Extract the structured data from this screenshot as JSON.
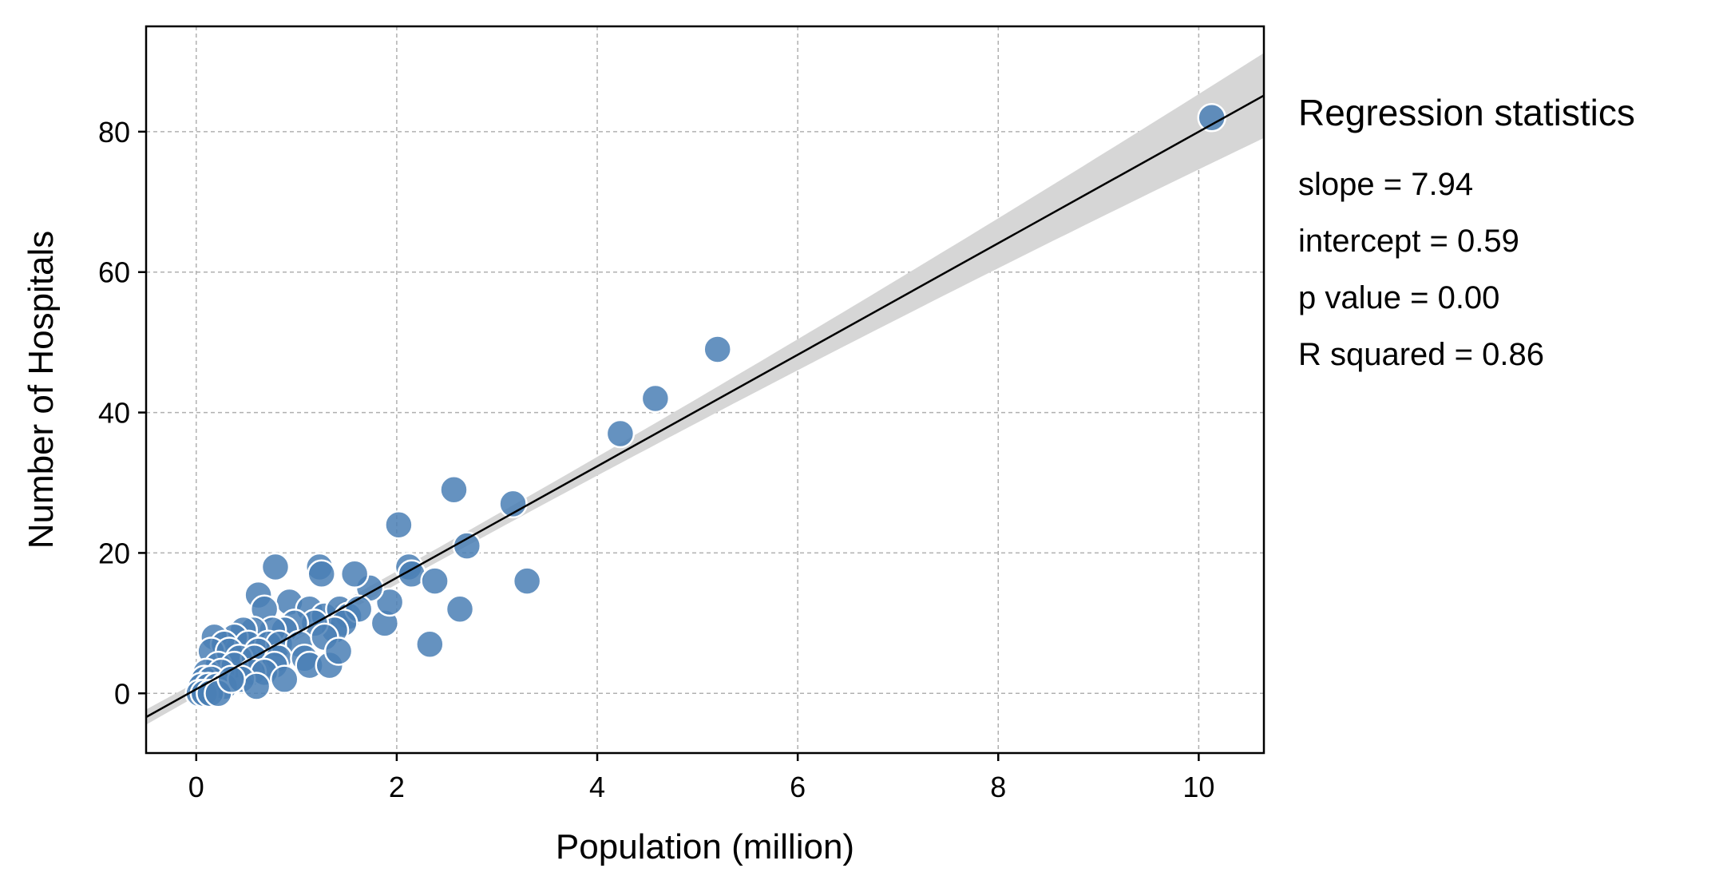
{
  "chart_data": {
    "type": "scatter",
    "title": "",
    "xlabel": "Population (million)",
    "ylabel": "Number of Hospitals",
    "xlim": [
      -0.5,
      10.65
    ],
    "ylim": [
      -8.5,
      95
    ],
    "xticks": [
      0,
      2,
      4,
      6,
      8,
      10
    ],
    "yticks": [
      0,
      20,
      40,
      60,
      80
    ],
    "grid": true,
    "colors": {
      "points": "#4a7fb5",
      "point_edge": "#ffffff",
      "line": "#000000",
      "band": "#d6d6d6",
      "grid": "#b0b0b0"
    },
    "series": [
      {
        "type": "scatter",
        "points": [
          [
            10.13,
            82
          ],
          [
            5.2,
            49
          ],
          [
            4.58,
            42
          ],
          [
            4.23,
            37
          ],
          [
            3.16,
            27
          ],
          [
            2.57,
            29
          ],
          [
            2.02,
            24
          ],
          [
            2.7,
            21
          ],
          [
            3.3,
            16
          ],
          [
            2.12,
            18
          ],
          [
            2.15,
            17
          ],
          [
            2.38,
            16
          ],
          [
            2.63,
            12
          ],
          [
            2.33,
            7
          ],
          [
            1.88,
            10
          ],
          [
            1.93,
            13
          ],
          [
            1.73,
            15
          ],
          [
            1.58,
            17
          ],
          [
            1.23,
            18
          ],
          [
            1.25,
            17
          ],
          [
            0.79,
            18
          ],
          [
            0.62,
            14
          ],
          [
            0.93,
            13
          ],
          [
            0.68,
            12
          ],
          [
            1.13,
            12
          ],
          [
            1.28,
            11
          ],
          [
            1.43,
            12
          ],
          [
            1.52,
            11
          ],
          [
            1.62,
            12
          ],
          [
            1.47,
            10
          ],
          [
            1.38,
            9
          ],
          [
            1.18,
            10
          ],
          [
            0.98,
            10
          ],
          [
            0.88,
            9
          ],
          [
            0.76,
            9
          ],
          [
            0.57,
            9
          ],
          [
            0.47,
            9
          ],
          [
            0.38,
            8
          ],
          [
            0.18,
            8
          ],
          [
            0.28,
            7
          ],
          [
            0.52,
            7
          ],
          [
            0.72,
            7
          ],
          [
            0.83,
            7
          ],
          [
            1.03,
            7
          ],
          [
            1.28,
            8
          ],
          [
            0.15,
            6
          ],
          [
            0.33,
            6
          ],
          [
            0.62,
            6
          ],
          [
            0.43,
            5
          ],
          [
            0.58,
            5
          ],
          [
            0.82,
            5
          ],
          [
            1.08,
            5
          ],
          [
            0.22,
            4
          ],
          [
            0.38,
            4
          ],
          [
            0.78,
            4
          ],
          [
            1.13,
            4
          ],
          [
            1.33,
            4
          ],
          [
            1.42,
            6
          ],
          [
            0.56,
            3
          ],
          [
            0.68,
            3
          ],
          [
            0.88,
            2
          ],
          [
            0.1,
            3
          ],
          [
            0.25,
            3
          ],
          [
            0.08,
            2
          ],
          [
            0.15,
            2
          ],
          [
            0.05,
            1
          ],
          [
            0.12,
            1
          ],
          [
            0.2,
            1
          ],
          [
            0.28,
            1
          ],
          [
            0.03,
            0
          ],
          [
            0.08,
            0
          ],
          [
            0.14,
            0
          ],
          [
            0.22,
            0
          ],
          [
            0.45,
            2
          ],
          [
            0.6,
            1
          ],
          [
            0.35,
            2
          ]
        ]
      },
      {
        "type": "line",
        "name": "",
        "x": [
          -0.5,
          10.65
        ]
      }
    ],
    "regression": {
      "slope": 7.94,
      "intercept": 0.59,
      "ci_halfwidth_at_mean": 0.9,
      "ci_halfwidth_at_max": 5.5
    }
  },
  "stats": {
    "title": "Regression statistics",
    "lines": [
      "slope = 7.94",
      "intercept = 0.59",
      "p value = 0.00",
      "R squared = 0.86"
    ]
  }
}
